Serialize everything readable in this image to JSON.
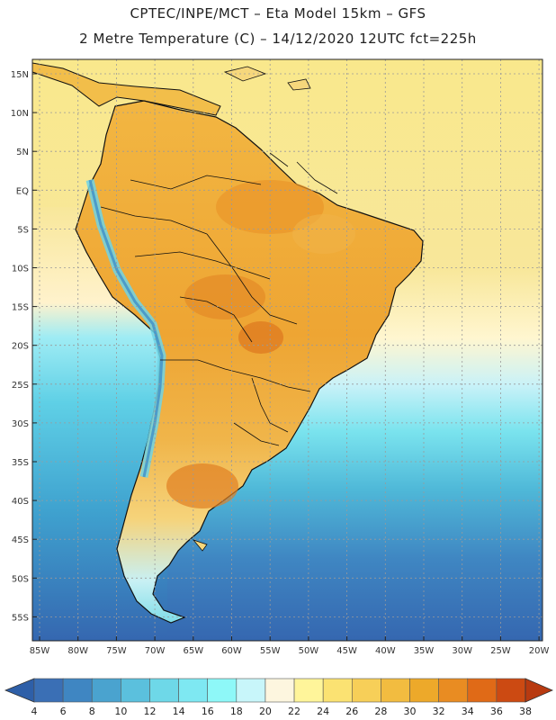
{
  "header": {
    "line1": "CPTEC/INPE/MCT –  Eta Model 15km – GFS",
    "line2": "2 Metre Temperature (C) – 14/12/2020 12UTC fct=225h"
  },
  "map": {
    "lat_labels": [
      "15N",
      "10N",
      "5N",
      "EQ",
      "5S",
      "10S",
      "15S",
      "20S",
      "25S",
      "30S",
      "35S",
      "40S",
      "45S",
      "50S",
      "55S"
    ],
    "lon_labels": [
      "85W",
      "80W",
      "75W",
      "70W",
      "65W",
      "60W",
      "55W",
      "50W",
      "45W",
      "40W",
      "35W",
      "30W",
      "25W",
      "20W"
    ]
  },
  "legend": {
    "ticks": [
      "4",
      "6",
      "8",
      "10",
      "12",
      "14",
      "16",
      "18",
      "20",
      "22",
      "24",
      "26",
      "28",
      "30",
      "32",
      "34",
      "36",
      "38"
    ],
    "colors": [
      "#3a6fb5",
      "#3f86c2",
      "#4aa3cf",
      "#5bc0dd",
      "#6ed8e8",
      "#7ee8f2",
      "#8ef8f8",
      "#c8f6fa",
      "#fdf6df",
      "#fff59a",
      "#fbe272",
      "#f7cf58",
      "#f2bc40",
      "#eda92a",
      "#e98c22",
      "#e06a17",
      "#cc4a12"
    ],
    "left_arrow_color": "#2e5fa8",
    "right_arrow_color": "#b83a10"
  }
}
